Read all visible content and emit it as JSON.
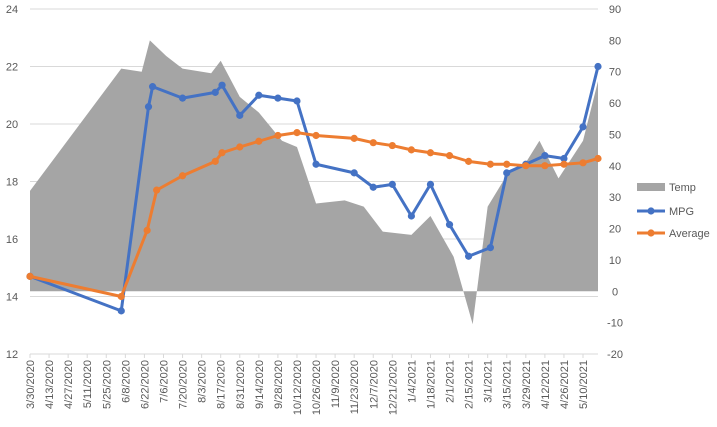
{
  "chart_data": {
    "type": "line",
    "x": [
      "3/30/2020",
      "4/13/2020",
      "4/27/2020",
      "5/11/2020",
      "5/25/2020",
      "6/8/2020",
      "6/22/2020",
      "7/6/2020",
      "7/20/2020",
      "8/3/2020",
      "8/17/2020",
      "8/31/2020",
      "9/14/2020",
      "9/28/2020",
      "10/12/2020",
      "10/26/2020",
      "11/9/2020",
      "11/23/2020",
      "12/7/2020",
      "12/21/2020",
      "1/4/2021",
      "1/18/2021",
      "2/1/2021",
      "2/15/2021",
      "3/1/2021",
      "3/15/2021",
      "3/29/2021",
      "4/12/2021",
      "4/26/2021",
      "5/10/2021"
    ],
    "xlim": [
      "3/30/2020",
      "5/21/2021"
    ],
    "left_axis": {
      "ylim": [
        12,
        24
      ],
      "ticks": [
        12,
        14,
        16,
        18,
        20,
        22,
        24
      ]
    },
    "right_axis": {
      "ylim": [
        -20,
        90
      ],
      "ticks": [
        -20,
        -10,
        0,
        10,
        20,
        30,
        40,
        50,
        60,
        70,
        80,
        90
      ]
    },
    "series": [
      {
        "name": "Temp",
        "type": "area",
        "axis": "right",
        "color": "#a5a5a5",
        "points": [
          [
            "3/30/2020",
            32
          ],
          [
            "6/5/2020",
            71
          ],
          [
            "6/20/2020",
            70
          ],
          [
            "6/26/2020",
            80
          ],
          [
            "7/8/2020",
            75
          ],
          [
            "7/20/2020",
            71
          ],
          [
            "8/10/2020",
            69.5
          ],
          [
            "8/17/2020",
            73.5
          ],
          [
            "8/31/2020",
            62
          ],
          [
            "9/14/2020",
            57
          ],
          [
            "10/1/2020",
            48
          ],
          [
            "10/12/2020",
            46
          ],
          [
            "10/26/2020",
            28
          ],
          [
            "11/16/2020",
            29
          ],
          [
            "11/30/2020",
            27
          ],
          [
            "12/14/2020",
            19
          ],
          [
            "1/4/2021",
            18
          ],
          [
            "1/18/2021",
            24
          ],
          [
            "2/4/2021",
            11
          ],
          [
            "2/18/2021",
            -10.5
          ],
          [
            "3/1/2021",
            27
          ],
          [
            "3/15/2021",
            37
          ],
          [
            "3/29/2021",
            41
          ],
          [
            "4/8/2021",
            48
          ],
          [
            "4/22/2021",
            36
          ],
          [
            "5/10/2021",
            48
          ],
          [
            "5/21/2021",
            67
          ]
        ]
      },
      {
        "name": "MPG",
        "type": "line",
        "axis": "left",
        "color": "#4472c4",
        "points": [
          [
            "3/30/2020",
            14.7
          ],
          [
            "6/5/2020",
            13.5
          ],
          [
            "6/25/2020",
            20.6
          ],
          [
            "6/28/2020",
            21.3
          ],
          [
            "7/20/2020",
            20.9
          ],
          [
            "8/13/2020",
            21.1
          ],
          [
            "8/18/2020",
            21.35
          ],
          [
            "8/31/2020",
            20.3
          ],
          [
            "9/14/2020",
            21.0
          ],
          [
            "9/28/2020",
            20.9
          ],
          [
            "10/12/2020",
            20.8
          ],
          [
            "10/26/2020",
            18.6
          ],
          [
            "11/23/2020",
            18.3
          ],
          [
            "12/7/2020",
            17.8
          ],
          [
            "12/21/2020",
            17.9
          ],
          [
            "1/4/2021",
            16.8
          ],
          [
            "1/18/2021",
            17.9
          ],
          [
            "2/1/2021",
            16.5
          ],
          [
            "2/15/2021",
            15.4
          ],
          [
            "3/3/2021",
            15.7
          ],
          [
            "3/15/2021",
            18.3
          ],
          [
            "3/29/2021",
            18.6
          ],
          [
            "4/12/2021",
            18.9
          ],
          [
            "4/26/2021",
            18.8
          ],
          [
            "5/10/2021",
            19.9
          ],
          [
            "5/21/2021",
            22.0
          ]
        ]
      },
      {
        "name": "Average",
        "type": "line",
        "axis": "left",
        "color": "#ed7d31",
        "points": [
          [
            "3/30/2020",
            14.7
          ],
          [
            "6/5/2020",
            14.0
          ],
          [
            "6/24/2020",
            16.3
          ],
          [
            "7/1/2020",
            17.7
          ],
          [
            "7/20/2020",
            18.2
          ],
          [
            "8/13/2020",
            18.7
          ],
          [
            "8/18/2020",
            19.0
          ],
          [
            "8/31/2020",
            19.2
          ],
          [
            "9/14/2020",
            19.4
          ],
          [
            "9/28/2020",
            19.6
          ],
          [
            "10/12/2020",
            19.7
          ],
          [
            "10/26/2020",
            19.6
          ],
          [
            "11/23/2020",
            19.5
          ],
          [
            "12/7/2020",
            19.35
          ],
          [
            "12/21/2020",
            19.25
          ],
          [
            "1/4/2021",
            19.1
          ],
          [
            "1/18/2021",
            19.0
          ],
          [
            "2/1/2021",
            18.9
          ],
          [
            "2/15/2021",
            18.7
          ],
          [
            "3/3/2021",
            18.6
          ],
          [
            "3/15/2021",
            18.6
          ],
          [
            "3/29/2021",
            18.55
          ],
          [
            "4/12/2021",
            18.55
          ],
          [
            "4/26/2021",
            18.6
          ],
          [
            "5/10/2021",
            18.65
          ],
          [
            "5/21/2021",
            18.8
          ]
        ]
      }
    ],
    "grid": true,
    "legend_position": "right",
    "legend": [
      "Temp",
      "MPG",
      "Average"
    ],
    "title": "",
    "xlabel": "",
    "ylabel": ""
  }
}
